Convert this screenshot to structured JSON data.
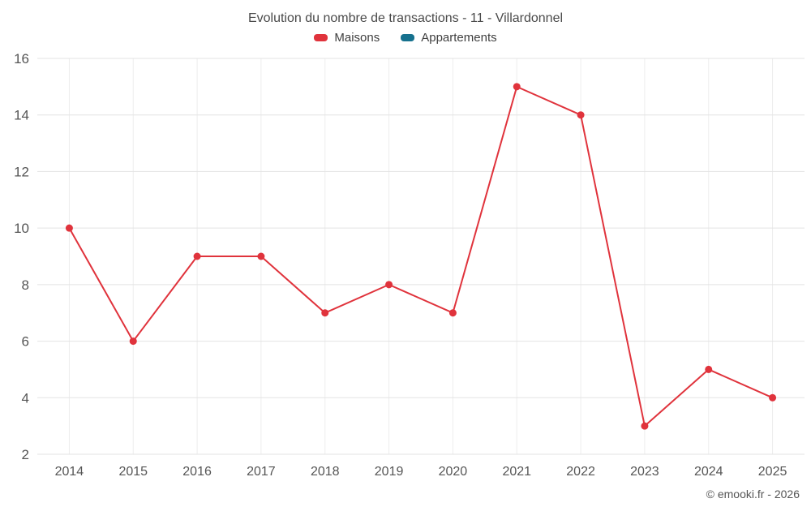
{
  "chart_data": {
    "type": "line",
    "title": "Evolution du nombre de transactions - 11 - Villardonnel",
    "categories": [
      "2014",
      "2015",
      "2016",
      "2017",
      "2018",
      "2019",
      "2020",
      "2021",
      "2022",
      "2023",
      "2024",
      "2025"
    ],
    "series": [
      {
        "name": "Maisons",
        "color": "#e0333c",
        "values": [
          10,
          6,
          9,
          9,
          7,
          8,
          7,
          15,
          14,
          3,
          5,
          4
        ]
      },
      {
        "name": "Appartements",
        "color": "#16718e",
        "values": []
      }
    ],
    "xlabel": "",
    "ylabel": "",
    "ylim": [
      2,
      16
    ],
    "yticks": [
      2,
      4,
      6,
      8,
      10,
      12,
      14,
      16
    ],
    "grid": true,
    "grid_color_h": "#e3e3e3",
    "grid_color_v": "#ededed",
    "legend_position": "top"
  },
  "footer": {
    "copyright": "© emooki.fr - 2026"
  }
}
